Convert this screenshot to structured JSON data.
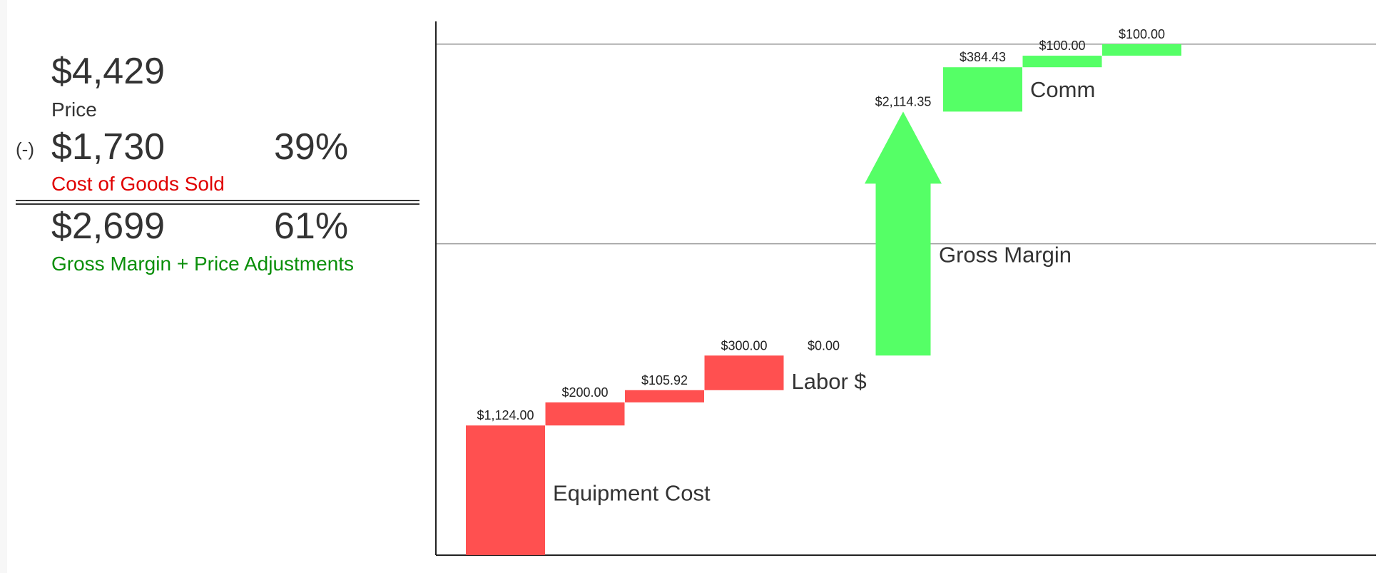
{
  "summary": {
    "price": {
      "amount": "$4,429",
      "label": "Price"
    },
    "cogs": {
      "sign": "(-)",
      "amount": "$1,730",
      "percent": "39%",
      "label": "Cost of Goods Sold",
      "color": "#e00000"
    },
    "margin": {
      "amount": "$2,699",
      "percent": "61%",
      "label": "Gross Margin + Price Adjustments",
      "color": "#0a8f0a"
    }
  },
  "chart_data": {
    "type": "waterfall",
    "title": "",
    "xlabel": "",
    "ylabel": "",
    "ylim": [
      0,
      4650
    ],
    "grid": false,
    "reference_lines": [
      2699,
      4429
    ],
    "colors": {
      "cost": "#ff5050",
      "margin": "#55ff66"
    },
    "steps": [
      {
        "value": 1124.0,
        "label": "$1,124.00",
        "kind": "cost"
      },
      {
        "value": 200.0,
        "label": "$200.00",
        "kind": "cost"
      },
      {
        "value": 105.92,
        "label": "$105.92",
        "kind": "cost"
      },
      {
        "value": 300.0,
        "label": "$300.00",
        "kind": "cost"
      },
      {
        "value": 0.0,
        "label": "$0.00",
        "kind": "cost"
      },
      {
        "value": 2114.35,
        "label": "$2,114.35",
        "kind": "margin-arrow"
      },
      {
        "value": 384.43,
        "label": "$384.43",
        "kind": "margin"
      },
      {
        "value": 100.0,
        "label": "$100.00",
        "kind": "margin"
      },
      {
        "value": 100.0,
        "label": "$100.00",
        "kind": "margin"
      }
    ],
    "annotations": [
      {
        "text": "Equipment Cost",
        "step": 0
      },
      {
        "text": "Labor $",
        "step": 3
      },
      {
        "text": "Gross Margin",
        "step": 5
      },
      {
        "text": "Comm",
        "step": 6
      }
    ]
  }
}
